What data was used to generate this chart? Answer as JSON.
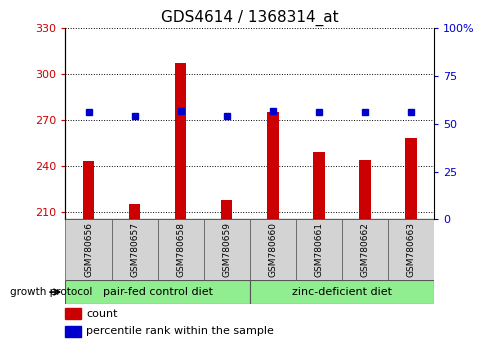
{
  "title": "GDS4614 / 1368314_at",
  "samples": [
    "GSM780656",
    "GSM780657",
    "GSM780658",
    "GSM780659",
    "GSM780660",
    "GSM780661",
    "GSM780662",
    "GSM780663"
  ],
  "counts": [
    243,
    215,
    307,
    218,
    275,
    249,
    244,
    258
  ],
  "percentiles": [
    56,
    54,
    57,
    54,
    57,
    56,
    56,
    56
  ],
  "ylim_left": [
    205,
    330
  ],
  "ylim_right": [
    0,
    100
  ],
  "yticks_left": [
    210,
    240,
    270,
    300,
    330
  ],
  "yticks_right": [
    0,
    25,
    50,
    75,
    100
  ],
  "bar_color": "#cc0000",
  "dot_color": "#0000cc",
  "bar_width": 0.25,
  "group1_label": "pair-fed control diet",
  "group2_label": "zinc-deficient diet",
  "group1_indices": [
    0,
    1,
    2,
    3
  ],
  "group2_indices": [
    4,
    5,
    6,
    7
  ],
  "protocol_label": "growth protocol",
  "legend_count_label": "count",
  "legend_pct_label": "percentile rank within the sample",
  "group_bg_color": "#90ee90",
  "tick_label_bg": "#d3d3d3",
  "title_fontsize": 11,
  "tick_fontsize": 8,
  "label_fontsize": 6.5,
  "group_fontsize": 8,
  "legend_fontsize": 8
}
